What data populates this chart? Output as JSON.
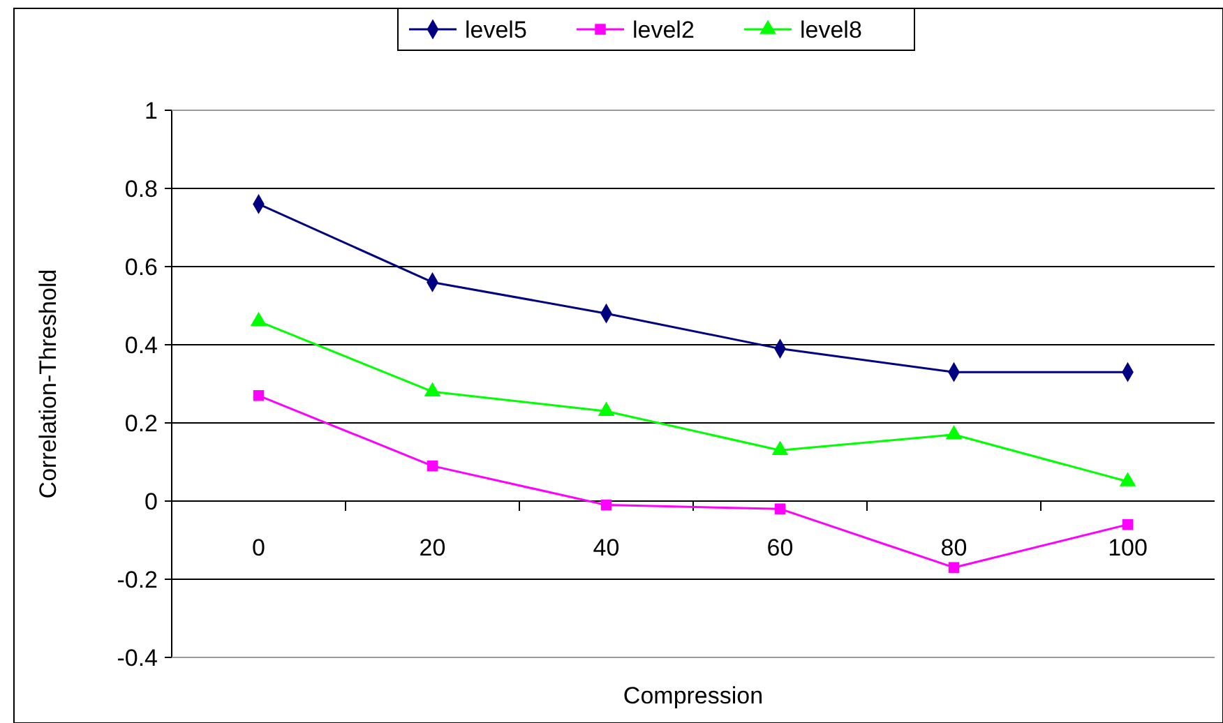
{
  "chart_data": {
    "type": "line",
    "xlabel": "Compression",
    "ylabel": "Correlation-Threshold",
    "categories": [
      "0",
      "20",
      "40",
      "60",
      "80",
      "100"
    ],
    "series": [
      {
        "name": "level5",
        "color": "#000080",
        "marker": "diamond",
        "values": [
          0.76,
          0.56,
          0.48,
          0.39,
          0.33,
          0.33
        ]
      },
      {
        "name": "level2",
        "color": "#ff00ff",
        "marker": "square",
        "values": [
          0.27,
          0.09,
          -0.01,
          -0.02,
          -0.17,
          -0.06
        ]
      },
      {
        "name": "level8",
        "color": "#00ff00",
        "marker": "triangle",
        "values": [
          0.46,
          0.28,
          0.23,
          0.13,
          0.17,
          0.05
        ]
      }
    ],
    "ylim": [
      -0.4,
      1
    ],
    "yticks": [
      -0.4,
      -0.2,
      0,
      0.2,
      0.4,
      0.6,
      0.8,
      1
    ],
    "grid": "y",
    "legend": "top"
  }
}
